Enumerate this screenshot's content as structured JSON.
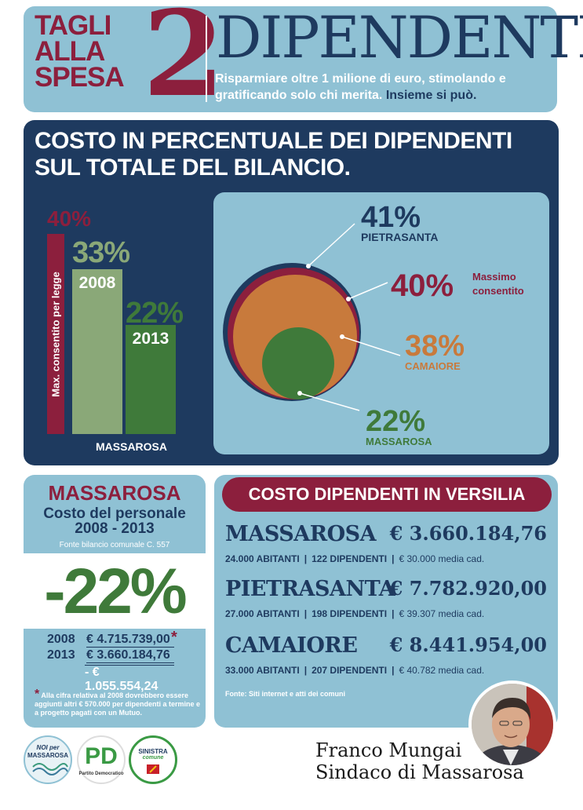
{
  "header": {
    "tagli_lines": [
      "TAGLI",
      "ALLA",
      "SPESA"
    ],
    "number": "2",
    "title": "DIPENDENTI",
    "subtitle": "Risparmiare oltre 1 milione di euro, stimolando e gratificando solo chi merita.",
    "subtitle_accent": "Insieme si può."
  },
  "percent_section": {
    "title_line1": "COSTO IN PERCENTUALE DEI DIPENDENTI",
    "title_line2": "SUL TOTALE DEL BILANCIO.",
    "bars": {
      "max_pct": "40%",
      "max_label": "Max. consentito per legge",
      "pct_2008": "33%",
      "label_2008": "2008",
      "pct_2013": "22%",
      "label_2013": "2013",
      "entity": "MASSAROSA"
    },
    "circles": [
      {
        "pct": "41%",
        "name": "PIETRASANTA",
        "value": 41,
        "color": "#1e3a5f"
      },
      {
        "pct": "40%",
        "name_line1": "Massimo",
        "name_line2": "consentito",
        "value": 40,
        "color": "#8c1f3d"
      },
      {
        "pct": "38%",
        "name": "CAMAIORE",
        "value": 38,
        "color": "#c87a3c"
      },
      {
        "pct": "22%",
        "name": "MASSAROSA",
        "value": 22,
        "color": "#3f7a3a"
      }
    ]
  },
  "chart_data": {
    "type": "bar",
    "categories": [
      "Max. consentito per legge",
      "2008",
      "2013"
    ],
    "values": [
      40,
      33,
      22
    ],
    "title": "COSTO IN PERCENTUALE DEI DIPENDENTI SUL TOTALE DEL BILANCIO.",
    "xlabel": "MASSAROSA",
    "ylabel": "",
    "ylim": [
      0,
      40
    ]
  },
  "massarosa_box": {
    "title": "MASSAROSA",
    "subtitle_line1": "Costo del personale",
    "subtitle_line2": "2008 - 2013",
    "fonte": "Fonte bilancio comunale C. 557",
    "big_pct": "-22%",
    "rows": [
      {
        "year": "2008",
        "value": "€ 4.715.739,00"
      },
      {
        "year": "2013",
        "value": "€ 3.660.184,76"
      }
    ],
    "diff": "- € 1.055.554,24",
    "star": "*",
    "note": "Alla cifra relativa al 2008 dovrebbero essere aggiunti altri € 570.000 per dipendenti a termine e a progetto pagati con un Mutuo."
  },
  "versilia": {
    "title": "COSTO DIPENDENTI IN VERSILIA",
    "cities": [
      {
        "name": "MASSAROSA",
        "cost": "€ 3.660.184,76",
        "abitanti": "24.000 ABITANTI",
        "dipendenti": "122 DIPENDENTI",
        "media": "€ 30.000 media cad."
      },
      {
        "name": "PIETRASANTA",
        "cost": "€ 7.782.920,00",
        "abitanti": "27.000 ABITANTI",
        "dipendenti": "198 DIPENDENTI",
        "media": "€ 39.307 media cad."
      },
      {
        "name": "CAMAIORE",
        "cost": "€ 8.441.954,00",
        "abitanti": "33.000 ABITANTI",
        "dipendenti": "207 DIPENDENTI",
        "media": "€ 40.782 media cad."
      }
    ],
    "fonte": "Fonte: Siti internet e atti dei comuni"
  },
  "mayor": {
    "name": "Franco Mungai",
    "role": "Sindaco di Massarosa"
  },
  "logos": {
    "noi_line1": "NOI per",
    "noi_line2": "MASSAROSA",
    "pd_short": "PD",
    "pd_name": "Partito Democratico",
    "sinistra_line1": "SINISTRA",
    "sinistra_line2": "comune"
  },
  "colors": {
    "navy": "#1e3a5f",
    "light_blue": "#8fc1d4",
    "bordeaux": "#8c1f3d",
    "green": "#3f7a3a",
    "light_green": "#8aa878",
    "orange": "#c87a3c"
  }
}
